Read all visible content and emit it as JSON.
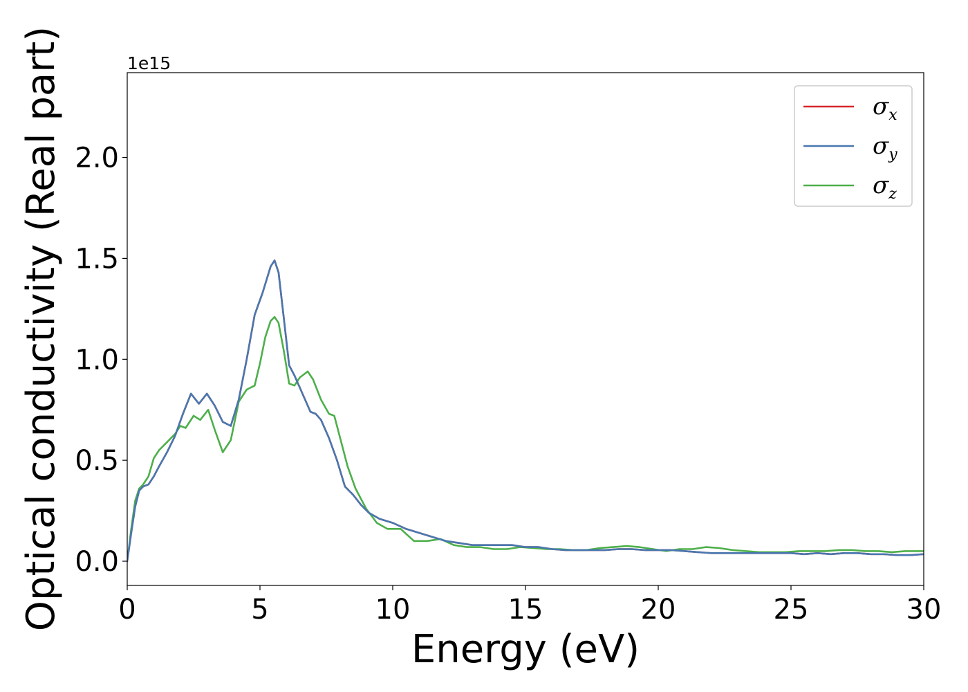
{
  "chart_data": {
    "type": "line",
    "title": "",
    "xlabel": "Energy (eV)",
    "ylabel": "Optical conductivity (Real part)",
    "y_offset_text": "1e15",
    "y_scale": 1000000000000000.0,
    "xlim": [
      0,
      30
    ],
    "ylim": [
      -0.12,
      2.42
    ],
    "x_ticks": [
      0,
      5,
      10,
      15,
      20,
      25,
      30
    ],
    "x_tick_labels": [
      "0",
      "5",
      "10",
      "15",
      "20",
      "25",
      "30"
    ],
    "y_ticks": [
      0.0,
      0.5,
      1.0,
      1.5,
      2.0
    ],
    "y_tick_labels": [
      "0.0",
      "0.5",
      "1.0",
      "1.5",
      "2.0"
    ],
    "grid": false,
    "legend_position": "top-right",
    "series": [
      {
        "name": "σ",
        "subscript": "x",
        "color": "#d62728",
        "x": [
          0,
          0.15,
          0.3,
          0.45,
          0.6,
          0.8,
          1.0,
          1.2,
          1.5,
          1.8,
          2.1,
          2.4,
          2.7,
          3.0,
          3.3,
          3.6,
          3.9,
          4.2,
          4.5,
          4.8,
          5.1,
          5.4,
          5.55,
          5.7,
          5.9,
          6.1,
          6.3,
          6.5,
          6.7,
          6.9,
          7.1,
          7.3,
          7.6,
          7.9,
          8.2,
          8.5,
          8.8,
          9.1,
          9.5,
          10.0,
          10.5,
          11.0,
          11.5,
          12.0,
          12.5,
          13.0,
          13.5,
          14.0,
          14.5,
          15.0,
          15.5,
          16.0,
          16.5,
          17.0,
          17.5,
          18.0,
          18.5,
          19.0,
          19.5,
          20.0,
          20.5,
          21.0,
          21.5,
          22.0,
          22.5,
          23.0,
          23.5,
          24.0,
          24.5,
          25.0,
          25.5,
          26.0,
          26.5,
          27.0,
          27.5,
          28.0,
          28.5,
          29.0,
          29.5,
          30.0
        ],
        "y": [
          0.0,
          0.14,
          0.27,
          0.35,
          0.37,
          0.38,
          0.42,
          0.47,
          0.54,
          0.62,
          0.73,
          0.83,
          0.78,
          0.83,
          0.77,
          0.69,
          0.67,
          0.8,
          1.0,
          1.22,
          1.33,
          1.46,
          1.49,
          1.43,
          1.2,
          0.97,
          0.92,
          0.86,
          0.8,
          0.74,
          0.73,
          0.7,
          0.61,
          0.5,
          0.37,
          0.33,
          0.28,
          0.24,
          0.21,
          0.19,
          0.16,
          0.14,
          0.12,
          0.1,
          0.09,
          0.08,
          0.08,
          0.08,
          0.08,
          0.07,
          0.07,
          0.06,
          0.055,
          0.055,
          0.055,
          0.055,
          0.06,
          0.06,
          0.055,
          0.055,
          0.055,
          0.05,
          0.045,
          0.04,
          0.04,
          0.04,
          0.04,
          0.04,
          0.04,
          0.04,
          0.035,
          0.04,
          0.035,
          0.04,
          0.04,
          0.035,
          0.035,
          0.03,
          0.03,
          0.035
        ]
      },
      {
        "name": "σ",
        "subscript": "y",
        "color": "#4878b0",
        "x": [
          0,
          0.15,
          0.3,
          0.45,
          0.6,
          0.8,
          1.0,
          1.2,
          1.5,
          1.8,
          2.1,
          2.4,
          2.7,
          3.0,
          3.3,
          3.6,
          3.9,
          4.2,
          4.5,
          4.8,
          5.1,
          5.4,
          5.55,
          5.7,
          5.9,
          6.1,
          6.3,
          6.5,
          6.7,
          6.9,
          7.1,
          7.3,
          7.6,
          7.9,
          8.2,
          8.5,
          8.8,
          9.1,
          9.5,
          10.0,
          10.5,
          11.0,
          11.5,
          12.0,
          12.5,
          13.0,
          13.5,
          14.0,
          14.5,
          15.0,
          15.5,
          16.0,
          16.5,
          17.0,
          17.5,
          18.0,
          18.5,
          19.0,
          19.5,
          20.0,
          20.5,
          21.0,
          21.5,
          22.0,
          22.5,
          23.0,
          23.5,
          24.0,
          24.5,
          25.0,
          25.5,
          26.0,
          26.5,
          27.0,
          27.5,
          28.0,
          28.5,
          29.0,
          29.5,
          30.0
        ],
        "y": [
          0.0,
          0.14,
          0.27,
          0.35,
          0.37,
          0.38,
          0.42,
          0.47,
          0.54,
          0.62,
          0.73,
          0.83,
          0.78,
          0.83,
          0.77,
          0.69,
          0.67,
          0.8,
          1.0,
          1.22,
          1.33,
          1.46,
          1.49,
          1.43,
          1.2,
          0.97,
          0.92,
          0.86,
          0.8,
          0.74,
          0.73,
          0.7,
          0.61,
          0.5,
          0.37,
          0.33,
          0.28,
          0.24,
          0.21,
          0.19,
          0.16,
          0.14,
          0.12,
          0.1,
          0.09,
          0.08,
          0.08,
          0.08,
          0.08,
          0.07,
          0.07,
          0.06,
          0.055,
          0.055,
          0.055,
          0.055,
          0.06,
          0.06,
          0.055,
          0.055,
          0.055,
          0.05,
          0.045,
          0.04,
          0.04,
          0.04,
          0.04,
          0.04,
          0.04,
          0.04,
          0.035,
          0.04,
          0.035,
          0.04,
          0.04,
          0.035,
          0.035,
          0.03,
          0.03,
          0.035
        ]
      },
      {
        "name": "σ",
        "subscript": "z",
        "color": "#4daf4a",
        "x": [
          0,
          0.15,
          0.3,
          0.45,
          0.6,
          0.8,
          1.0,
          1.2,
          1.5,
          1.8,
          2.0,
          2.2,
          2.5,
          2.75,
          3.05,
          3.3,
          3.6,
          3.9,
          4.2,
          4.5,
          4.8,
          5.0,
          5.2,
          5.4,
          5.55,
          5.7,
          5.9,
          6.1,
          6.3,
          6.5,
          6.8,
          7.0,
          7.3,
          7.6,
          7.8,
          8.0,
          8.3,
          8.6,
          9.0,
          9.4,
          9.8,
          10.3,
          10.8,
          11.3,
          11.8,
          12.3,
          12.8,
          13.3,
          13.8,
          14.3,
          14.8,
          15.3,
          15.8,
          16.3,
          16.8,
          17.3,
          17.8,
          18.3,
          18.8,
          19.3,
          19.8,
          20.3,
          20.8,
          21.3,
          21.8,
          22.3,
          22.8,
          23.3,
          23.8,
          24.3,
          24.8,
          25.3,
          25.8,
          26.3,
          26.8,
          27.3,
          27.8,
          28.3,
          28.8,
          29.3,
          30.0
        ],
        "y": [
          0.0,
          0.16,
          0.3,
          0.36,
          0.38,
          0.42,
          0.51,
          0.55,
          0.59,
          0.63,
          0.67,
          0.66,
          0.72,
          0.7,
          0.75,
          0.65,
          0.54,
          0.6,
          0.79,
          0.85,
          0.87,
          0.98,
          1.11,
          1.19,
          1.21,
          1.18,
          1.04,
          0.88,
          0.87,
          0.91,
          0.94,
          0.9,
          0.8,
          0.73,
          0.72,
          0.62,
          0.47,
          0.36,
          0.26,
          0.19,
          0.16,
          0.16,
          0.1,
          0.1,
          0.11,
          0.08,
          0.07,
          0.07,
          0.06,
          0.06,
          0.07,
          0.065,
          0.06,
          0.06,
          0.055,
          0.055,
          0.065,
          0.07,
          0.075,
          0.07,
          0.06,
          0.05,
          0.06,
          0.06,
          0.07,
          0.065,
          0.055,
          0.05,
          0.045,
          0.045,
          0.045,
          0.05,
          0.05,
          0.05,
          0.055,
          0.055,
          0.05,
          0.05,
          0.045,
          0.05,
          0.05
        ]
      }
    ]
  }
}
